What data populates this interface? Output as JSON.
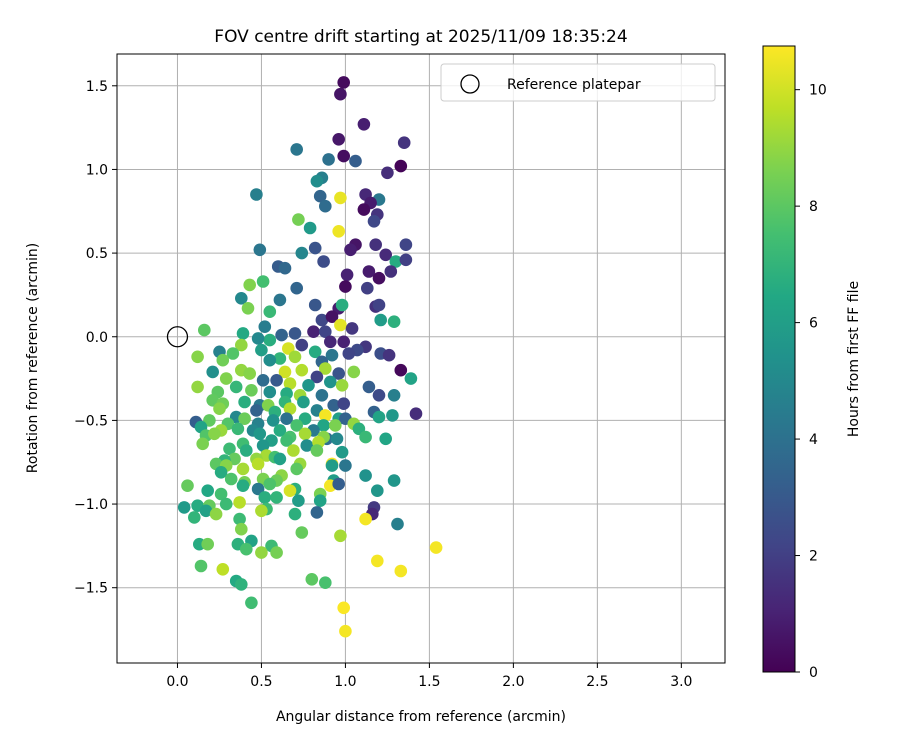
{
  "chart_data": {
    "type": "scatter",
    "title": "FOV centre drift starting at 2025/11/09 18:35:24",
    "xlabel": "Angular distance from reference (arcmin)",
    "ylabel": "Rotation from reference (arcmin)",
    "xlim": [
      -0.36,
      3.26
    ],
    "ylim": [
      -1.95,
      1.69
    ],
    "xticks": [
      "0.0",
      "0.5",
      "1.0",
      "1.5",
      "2.0",
      "2.5",
      "3.0"
    ],
    "xtick_values": [
      0,
      0.5,
      1,
      1.5,
      2,
      2.5,
      3
    ],
    "yticks": [
      "1.5",
      "1.0",
      "0.5",
      "0.0",
      "−0.5",
      "−1.0",
      "−1.5"
    ],
    "ytick_values": [
      1.5,
      1.0,
      0.5,
      0.0,
      -0.5,
      -1.0,
      -1.5
    ],
    "grid": true,
    "legend": {
      "position": "top-right",
      "label": "Reference platepar"
    },
    "reference_point": {
      "x": 0.0,
      "y": 0.0
    },
    "colorbar": {
      "label": "Hours from first FF file",
      "colormap": "viridis",
      "range": [
        0,
        10.75
      ],
      "ticks": [
        "0",
        "2",
        "4",
        "6",
        "8",
        "10"
      ],
      "tick_values": [
        0,
        2,
        4,
        6,
        8,
        10
      ]
    },
    "points": [
      [
        0.99,
        1.52,
        0.3
      ],
      [
        0.97,
        1.45,
        0.6
      ],
      [
        1.11,
        1.27,
        0.9
      ],
      [
        0.96,
        1.18,
        0.7
      ],
      [
        1.35,
        1.16,
        1.6
      ],
      [
        0.71,
        1.12,
        4.2
      ],
      [
        0.99,
        1.08,
        0.4
      ],
      [
        1.06,
        1.05,
        3.2
      ],
      [
        0.9,
        1.06,
        4.0
      ],
      [
        1.33,
        1.02,
        0.1
      ],
      [
        1.25,
        0.98,
        1.4
      ],
      [
        0.86,
        0.95,
        4.6
      ],
      [
        0.83,
        0.93,
        5.2
      ],
      [
        1.12,
        0.85,
        1.2
      ],
      [
        0.47,
        0.85,
        4.6
      ],
      [
        1.2,
        0.82,
        4.3
      ],
      [
        0.85,
        0.84,
        3.5
      ],
      [
        0.97,
        0.83,
        10.4
      ],
      [
        1.15,
        0.8,
        0.8
      ],
      [
        1.11,
        0.76,
        0.3
      ],
      [
        0.88,
        0.78,
        3.8
      ],
      [
        1.19,
        0.73,
        1.6
      ],
      [
        0.72,
        0.7,
        8.5
      ],
      [
        1.17,
        0.69,
        2.3
      ],
      [
        0.79,
        0.65,
        5.8
      ],
      [
        0.96,
        0.63,
        10.5
      ],
      [
        1.06,
        0.55,
        0.6
      ],
      [
        1.03,
        0.52,
        0.9
      ],
      [
        1.24,
        0.49,
        1.3
      ],
      [
        1.18,
        0.55,
        1.5
      ],
      [
        1.36,
        0.55,
        2.2
      ],
      [
        0.82,
        0.53,
        2.8
      ],
      [
        0.74,
        0.5,
        4.9
      ],
      [
        1.3,
        0.45,
        6.6
      ],
      [
        0.49,
        0.52,
        4.2
      ],
      [
        1.36,
        0.46,
        2.0
      ],
      [
        0.6,
        0.42,
        3.1
      ],
      [
        0.87,
        0.45,
        2.5
      ],
      [
        0.64,
        0.41,
        3.6
      ],
      [
        1.14,
        0.39,
        0.8
      ],
      [
        1.27,
        0.39,
        1.5
      ],
      [
        1.01,
        0.37,
        1.0
      ],
      [
        1.2,
        0.35,
        0.4
      ],
      [
        1.0,
        0.3,
        0.3
      ],
      [
        1.13,
        0.29,
        2.0
      ],
      [
        0.43,
        0.31,
        8.7
      ],
      [
        0.51,
        0.33,
        7.5
      ],
      [
        0.71,
        0.29,
        3.5
      ],
      [
        1.18,
        0.18,
        1.5
      ],
      [
        1.2,
        0.19,
        2.1
      ],
      [
        0.96,
        0.17,
        0.8
      ],
      [
        0.82,
        0.19,
        2.9
      ],
      [
        0.98,
        0.19,
        6.7
      ],
      [
        0.61,
        0.22,
        4.2
      ],
      [
        0.38,
        0.23,
        5.0
      ],
      [
        0.42,
        0.17,
        8.6
      ],
      [
        0.55,
        0.15,
        7.2
      ],
      [
        0.86,
        0.1,
        2.3
      ],
      [
        1.21,
        0.1,
        5.9
      ],
      [
        0.92,
        0.12,
        0.5
      ],
      [
        0.97,
        0.07,
        10.3
      ],
      [
        1.29,
        0.09,
        6.8
      ],
      [
        0.81,
        0.03,
        1.0
      ],
      [
        0.88,
        0.03,
        2.2
      ],
      [
        1.04,
        0.05,
        1.7
      ],
      [
        0.52,
        0.06,
        4.5
      ],
      [
        0.16,
        0.04,
        8.0
      ],
      [
        0.55,
        -0.02,
        6.7
      ],
      [
        0.39,
        0.02,
        6.5
      ],
      [
        0.48,
        -0.01,
        5.0
      ],
      [
        0.62,
        0.01,
        3.4
      ],
      [
        0.7,
        0.02,
        2.9
      ],
      [
        0.74,
        -0.05,
        2.0
      ],
      [
        0.91,
        -0.03,
        1.2
      ],
      [
        0.99,
        -0.03,
        1.0
      ],
      [
        1.12,
        -0.06,
        1.7
      ],
      [
        1.07,
        -0.08,
        2.4
      ],
      [
        0.38,
        -0.05,
        9.0
      ],
      [
        0.12,
        -0.12,
        8.8
      ],
      [
        0.25,
        -0.09,
        4.7
      ],
      [
        0.5,
        -0.08,
        6.0
      ],
      [
        0.66,
        -0.07,
        10.1
      ],
      [
        0.82,
        -0.09,
        6.6
      ],
      [
        0.92,
        -0.11,
        4.2
      ],
      [
        1.02,
        -0.1,
        2.2
      ],
      [
        1.21,
        -0.1,
        2.6
      ],
      [
        1.26,
        -0.11,
        1.6
      ],
      [
        0.33,
        -0.1,
        7.8
      ],
      [
        0.27,
        -0.14,
        8.4
      ],
      [
        0.7,
        -0.12,
        9.2
      ],
      [
        0.61,
        -0.13,
        7.0
      ],
      [
        0.55,
        -0.14,
        5.2
      ],
      [
        0.86,
        -0.15,
        3.5
      ],
      [
        1.33,
        -0.2,
        0.2
      ],
      [
        0.21,
        -0.21,
        5.3
      ],
      [
        0.38,
        -0.2,
        9.0
      ],
      [
        0.43,
        -0.22,
        8.8
      ],
      [
        0.74,
        -0.2,
        9.5
      ],
      [
        0.64,
        -0.21,
        10.0
      ],
      [
        0.88,
        -0.19,
        9.3
      ],
      [
        0.96,
        -0.22,
        2.8
      ],
      [
        1.05,
        -0.21,
        8.8
      ],
      [
        0.83,
        -0.24,
        2.1
      ],
      [
        1.39,
        -0.25,
        6.2
      ],
      [
        0.29,
        -0.25,
        8.7
      ],
      [
        0.51,
        -0.26,
        3.8
      ],
      [
        0.59,
        -0.26,
        3.0
      ],
      [
        0.67,
        -0.28,
        9.6
      ],
      [
        0.78,
        -0.29,
        5.6
      ],
      [
        0.91,
        -0.27,
        5.5
      ],
      [
        0.98,
        -0.29,
        9.1
      ],
      [
        1.14,
        -0.3,
        3.2
      ],
      [
        0.35,
        -0.3,
        7.1
      ],
      [
        0.12,
        -0.3,
        9.0
      ],
      [
        0.24,
        -0.33,
        8.0
      ],
      [
        0.44,
        -0.32,
        8.3
      ],
      [
        0.55,
        -0.33,
        5.2
      ],
      [
        0.65,
        -0.34,
        6.6
      ],
      [
        0.73,
        -0.35,
        9.2
      ],
      [
        0.86,
        -0.35,
        4.1
      ],
      [
        1.2,
        -0.35,
        2.4
      ],
      [
        1.29,
        -0.35,
        4.6
      ],
      [
        0.21,
        -0.38,
        8.1
      ],
      [
        0.27,
        -0.4,
        8.4
      ],
      [
        0.4,
        -0.39,
        6.7
      ],
      [
        0.49,
        -0.41,
        4.3
      ],
      [
        0.54,
        -0.41,
        8.7
      ],
      [
        0.64,
        -0.39,
        7.0
      ],
      [
        0.75,
        -0.39,
        6.0
      ],
      [
        0.93,
        -0.41,
        3.4
      ],
      [
        0.99,
        -0.4,
        2.2
      ],
      [
        0.25,
        -0.43,
        8.8
      ],
      [
        0.47,
        -0.44,
        3.4
      ],
      [
        0.58,
        -0.45,
        6.8
      ],
      [
        0.67,
        -0.43,
        9.5
      ],
      [
        0.83,
        -0.44,
        4.7
      ],
      [
        0.88,
        -0.47,
        10.6
      ],
      [
        1.17,
        -0.45,
        3.3
      ],
      [
        1.28,
        -0.47,
        5.7
      ],
      [
        1.42,
        -0.46,
        1.4
      ],
      [
        0.35,
        -0.48,
        5.0
      ],
      [
        0.4,
        -0.49,
        8.3
      ],
      [
        0.11,
        -0.51,
        3.2
      ],
      [
        0.19,
        -0.5,
        8.1
      ],
      [
        0.57,
        -0.5,
        5.4
      ],
      [
        0.65,
        -0.49,
        4.0
      ],
      [
        0.76,
        -0.49,
        6.6
      ],
      [
        0.96,
        -0.49,
        6.0
      ],
      [
        1.0,
        -0.49,
        3.4
      ],
      [
        1.2,
        -0.48,
        6.2
      ],
      [
        0.3,
        -0.52,
        7.8
      ],
      [
        0.48,
        -0.52,
        4.7
      ],
      [
        0.71,
        -0.53,
        7.6
      ],
      [
        0.87,
        -0.53,
        6.3
      ],
      [
        0.94,
        -0.53,
        8.6
      ],
      [
        1.05,
        -0.52,
        9.0
      ],
      [
        1.08,
        -0.55,
        6.8
      ],
      [
        0.14,
        -0.54,
        6.2
      ],
      [
        0.26,
        -0.56,
        9.1
      ],
      [
        0.36,
        -0.55,
        7.2
      ],
      [
        0.45,
        -0.56,
        5.0
      ],
      [
        0.61,
        -0.56,
        6.6
      ],
      [
        0.81,
        -0.56,
        4.4
      ],
      [
        0.17,
        -0.59,
        7.8
      ],
      [
        0.22,
        -0.58,
        8.8
      ],
      [
        0.49,
        -0.58,
        5.7
      ],
      [
        0.67,
        -0.6,
        7.6
      ],
      [
        0.76,
        -0.58,
        9.3
      ],
      [
        0.89,
        -0.61,
        3.9
      ],
      [
        0.56,
        -0.62,
        6.0
      ],
      [
        0.65,
        -0.62,
        7.4
      ],
      [
        0.87,
        -0.6,
        8.8
      ],
      [
        0.95,
        -0.61,
        5.0
      ],
      [
        1.12,
        -0.6,
        7.2
      ],
      [
        1.24,
        -0.61,
        6.3
      ],
      [
        0.15,
        -0.64,
        8.6
      ],
      [
        0.39,
        -0.64,
        7.4
      ],
      [
        0.51,
        -0.65,
        5.6
      ],
      [
        0.77,
        -0.65,
        5.2
      ],
      [
        0.84,
        -0.63,
        9.5
      ],
      [
        0.69,
        -0.68,
        9.4
      ],
      [
        0.41,
        -0.68,
        6.7
      ],
      [
        0.31,
        -0.67,
        7.3
      ],
      [
        0.83,
        -0.68,
        8.2
      ],
      [
        0.98,
        -0.69,
        5.8
      ],
      [
        0.53,
        -0.71,
        9.3
      ],
      [
        0.58,
        -0.72,
        7.5
      ],
      [
        0.61,
        -0.73,
        6.1
      ],
      [
        0.34,
        -0.73,
        8.2
      ],
      [
        0.47,
        -0.73,
        9.0
      ],
      [
        0.28,
        -0.74,
        7.0
      ],
      [
        0.48,
        -0.76,
        9.6
      ],
      [
        0.23,
        -0.76,
        8.0
      ],
      [
        0.29,
        -0.77,
        8.8
      ],
      [
        0.73,
        -0.76,
        9.1
      ],
      [
        0.71,
        -0.79,
        8.0
      ],
      [
        0.92,
        -0.76,
        10.6
      ],
      [
        1.0,
        -0.77,
        4.2
      ],
      [
        0.92,
        -0.77,
        5.9
      ],
      [
        0.39,
        -0.79,
        9.3
      ],
      [
        0.26,
        -0.81,
        6.6
      ],
      [
        0.62,
        -0.83,
        8.9
      ],
      [
        1.12,
        -0.83,
        5.4
      ],
      [
        0.32,
        -0.85,
        7.7
      ],
      [
        0.51,
        -0.85,
        8.6
      ],
      [
        0.59,
        -0.86,
        8.3
      ],
      [
        0.93,
        -0.86,
        5.9
      ],
      [
        1.29,
        -0.86,
        5.6
      ],
      [
        0.4,
        -0.87,
        8.5
      ],
      [
        0.55,
        -0.88,
        7.7
      ],
      [
        0.91,
        -0.89,
        10.6
      ],
      [
        0.39,
        -0.89,
        6.6
      ],
      [
        0.06,
        -0.89,
        8.2
      ],
      [
        0.48,
        -0.91,
        4.3
      ],
      [
        0.7,
        -0.91,
        6.8
      ],
      [
        0.96,
        -0.88,
        3.2
      ],
      [
        0.67,
        -0.92,
        10.1
      ],
      [
        1.19,
        -0.92,
        5.6
      ],
      [
        0.18,
        -0.92,
        6.4
      ],
      [
        0.85,
        -0.94,
        8.6
      ],
      [
        0.26,
        -0.94,
        7.5
      ],
      [
        0.52,
        -0.96,
        6.7
      ],
      [
        0.59,
        -0.96,
        7.0
      ],
      [
        0.72,
        -0.98,
        5.9
      ],
      [
        0.29,
        -1.0,
        7.3
      ],
      [
        0.37,
        -0.99,
        9.6
      ],
      [
        0.85,
        -0.98,
        6.2
      ],
      [
        0.12,
        -1.01,
        6.6
      ],
      [
        0.19,
        -1.01,
        8.2
      ],
      [
        1.17,
        -1.02,
        1.8
      ],
      [
        0.04,
        -1.02,
        5.8
      ],
      [
        0.53,
        -1.03,
        7.3
      ],
      [
        0.17,
        -1.04,
        6.1
      ],
      [
        0.5,
        -1.04,
        9.4
      ],
      [
        0.7,
        -1.06,
        6.8
      ],
      [
        0.83,
        -1.05,
        3.5
      ],
      [
        1.16,
        -1.06,
        1.2
      ],
      [
        0.23,
        -1.06,
        8.9
      ],
      [
        0.1,
        -1.08,
        7.0
      ],
      [
        0.37,
        -1.09,
        7.3
      ],
      [
        1.12,
        -1.09,
        10.6
      ],
      [
        1.31,
        -1.12,
        4.6
      ],
      [
        0.38,
        -1.15,
        8.7
      ],
      [
        0.74,
        -1.17,
        8.2
      ],
      [
        0.97,
        -1.19,
        9.3
      ],
      [
        0.44,
        -1.22,
        6.2
      ],
      [
        0.13,
        -1.24,
        6.6
      ],
      [
        0.18,
        -1.24,
        8.4
      ],
      [
        0.36,
        -1.24,
        6.8
      ],
      [
        0.56,
        -1.25,
        7.3
      ],
      [
        0.41,
        -1.27,
        7.6
      ],
      [
        1.54,
        -1.26,
        10.6
      ],
      [
        0.5,
        -1.29,
        9.0
      ],
      [
        0.59,
        -1.29,
        8.5
      ],
      [
        1.19,
        -1.34,
        10.6
      ],
      [
        0.14,
        -1.37,
        7.8
      ],
      [
        0.27,
        -1.39,
        9.7
      ],
      [
        1.33,
        -1.4,
        10.6
      ],
      [
        0.8,
        -1.45,
        8.0
      ],
      [
        0.35,
        -1.46,
        6.5
      ],
      [
        0.88,
        -1.47,
        7.6
      ],
      [
        0.38,
        -1.48,
        6.9
      ],
      [
        0.44,
        -1.59,
        7.4
      ],
      [
        0.99,
        -1.62,
        10.7
      ],
      [
        1.0,
        -1.76,
        10.6
      ]
    ]
  }
}
